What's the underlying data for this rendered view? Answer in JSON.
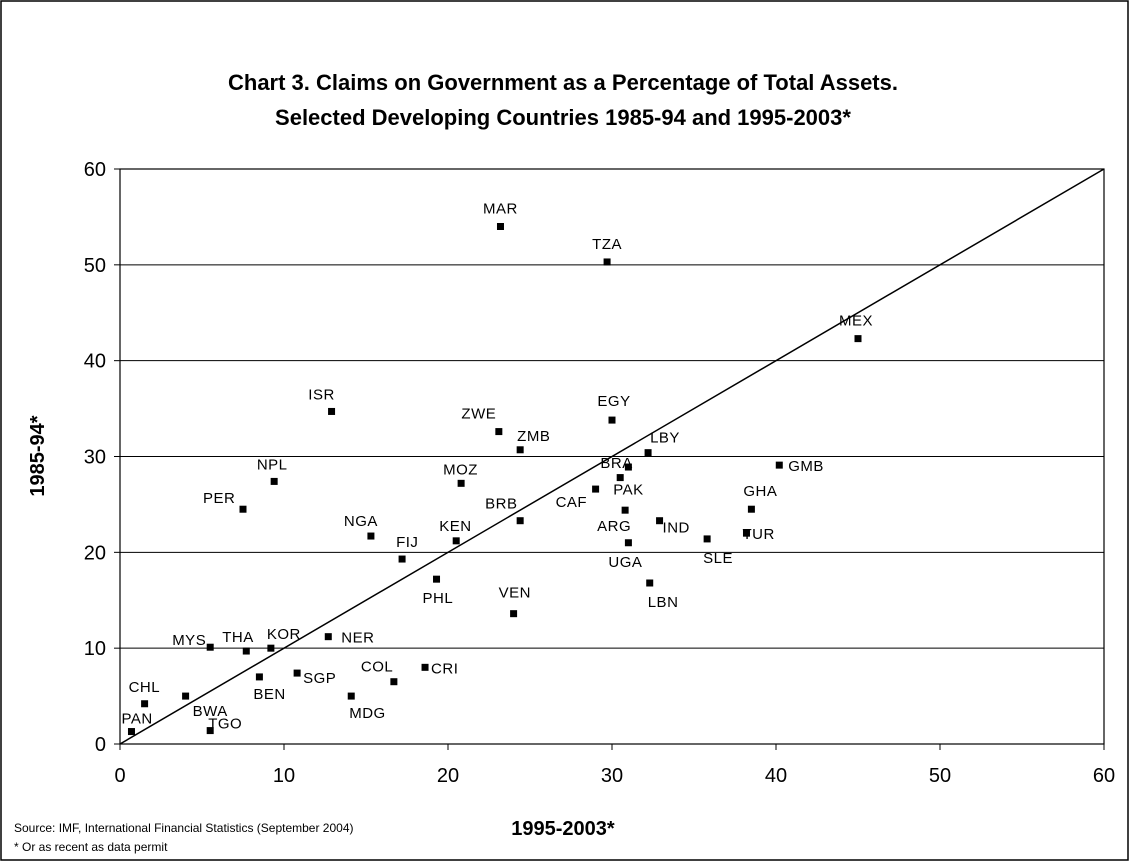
{
  "chart_data": {
    "type": "scatter",
    "title_line1": "Chart 3. Claims on Government as a Percentage of Total Assets.",
    "title_line2": "Selected Developing Countries 1985-94 and 1995-2003*",
    "xlabel": "1995-2003*",
    "ylabel": "1985-94*",
    "xlim": [
      0,
      60
    ],
    "ylim": [
      0,
      60
    ],
    "xticks": [
      0,
      10,
      20,
      30,
      40,
      50,
      60
    ],
    "yticks": [
      0,
      10,
      20,
      30,
      40,
      50,
      60
    ],
    "grid": "horizontal",
    "reference_line": {
      "x": [
        0,
        60
      ],
      "y": [
        0,
        60
      ]
    },
    "points": [
      {
        "label": "MAR",
        "x": 23.2,
        "y": 54.0
      },
      {
        "label": "TZA",
        "x": 29.7,
        "y": 50.3
      },
      {
        "label": "MEX",
        "x": 45.0,
        "y": 42.3
      },
      {
        "label": "ISR",
        "x": 12.9,
        "y": 34.7
      },
      {
        "label": "EGY",
        "x": 30.0,
        "y": 33.8
      },
      {
        "label": "ZWE",
        "x": 23.1,
        "y": 32.6
      },
      {
        "label": "ZMB",
        "x": 24.4,
        "y": 30.7
      },
      {
        "label": "LBY",
        "x": 32.2,
        "y": 30.4
      },
      {
        "label": "GMB",
        "x": 40.2,
        "y": 29.1
      },
      {
        "label": "BRA",
        "x": 31.0,
        "y": 28.9
      },
      {
        "label": "PAK",
        "x": 30.5,
        "y": 27.8
      },
      {
        "label": "NPL",
        "x": 9.4,
        "y": 27.4
      },
      {
        "label": "MOZ",
        "x": 20.8,
        "y": 27.2
      },
      {
        "label": "CAF",
        "x": 29.0,
        "y": 26.6
      },
      {
        "label": "PER",
        "x": 7.5,
        "y": 24.5
      },
      {
        "label": "GHA",
        "x": 38.5,
        "y": 24.5
      },
      {
        "label": "ARG",
        "x": 30.8,
        "y": 24.4
      },
      {
        "label": "BRB",
        "x": 24.4,
        "y": 23.3
      },
      {
        "label": "IND",
        "x": 32.9,
        "y": 23.3
      },
      {
        "label": "TUR",
        "x": 38.2,
        "y": 22.0
      },
      {
        "label": "NGA",
        "x": 15.3,
        "y": 21.7
      },
      {
        "label": "SLE",
        "x": 35.8,
        "y": 21.4
      },
      {
        "label": "KEN",
        "x": 20.5,
        "y": 21.2
      },
      {
        "label": "UGA",
        "x": 31.0,
        "y": 21.0
      },
      {
        "label": "FIJ",
        "x": 17.2,
        "y": 19.3
      },
      {
        "label": "PHL",
        "x": 19.3,
        "y": 17.2
      },
      {
        "label": "LBN",
        "x": 32.3,
        "y": 16.8
      },
      {
        "label": "VEN",
        "x": 24.0,
        "y": 13.6
      },
      {
        "label": "NER",
        "x": 12.7,
        "y": 11.2
      },
      {
        "label": "MYS",
        "x": 5.5,
        "y": 10.1
      },
      {
        "label": "KOR",
        "x": 9.2,
        "y": 10.0
      },
      {
        "label": "THA",
        "x": 7.7,
        "y": 9.7
      },
      {
        "label": "CRI",
        "x": 18.6,
        "y": 8.0
      },
      {
        "label": "SGP",
        "x": 10.8,
        "y": 7.4
      },
      {
        "label": "BEN",
        "x": 8.5,
        "y": 7.0
      },
      {
        "label": "COL",
        "x": 16.7,
        "y": 6.5
      },
      {
        "label": "MDG",
        "x": 14.1,
        "y": 5.0
      },
      {
        "label": "BWA",
        "x": 4.0,
        "y": 5.0
      },
      {
        "label": "CHL",
        "x": 1.5,
        "y": 4.2
      },
      {
        "label": "TGO",
        "x": 5.5,
        "y": 1.4
      },
      {
        "label": "PAN",
        "x": 0.7,
        "y": 1.3
      }
    ]
  },
  "source_note": "Source: IMF, International Financial Statistics (September 2004)",
  "footnote": "* Or as recent as data permit"
}
